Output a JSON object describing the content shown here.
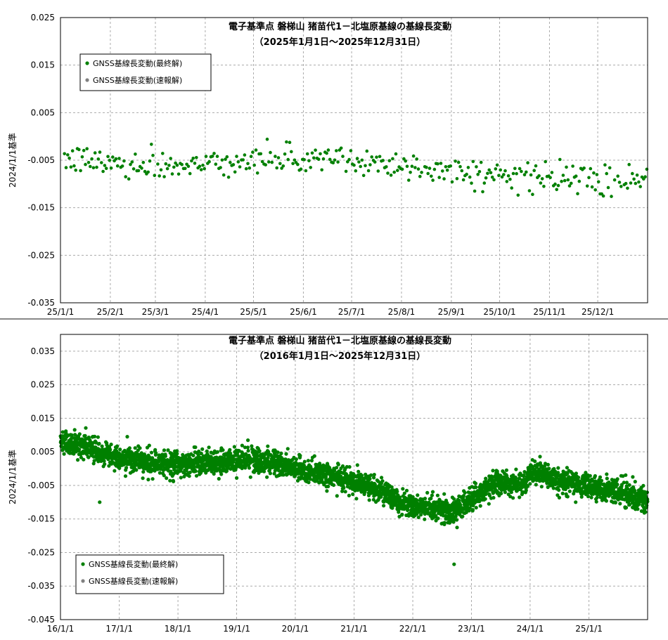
{
  "chart_data": [
    {
      "type": "scatter",
      "title": "電子基準点 磐梯山 猪苗代1－北塩原基線の基線長変動",
      "subtitle": "（2025年1月1日～2025年12月31日）",
      "ylabel": "2024/1/1基準",
      "ylim": [
        -0.035,
        0.025
      ],
      "y_ticks": [
        "0.025",
        "0.015",
        "0.005",
        "-0.005",
        "-0.015",
        "-0.025",
        "-0.035"
      ],
      "x_tick_labels": [
        "25/1/1",
        "25/2/1",
        "25/3/1",
        "25/4/1",
        "25/5/1",
        "25/6/1",
        "25/7/1",
        "25/8/1",
        "25/9/1",
        "25/10/1",
        "25/11/1",
        "25/12/1"
      ],
      "legend_position": "top-left",
      "series": [
        {
          "name": "GNSS基線長変動(最終解)",
          "color": "#008000"
        },
        {
          "name": "GNSS基線長変動(速報解)",
          "color": "#808080"
        }
      ],
      "trend_description": "daily points around -0.005 in January declining to about -0.009 by December",
      "x_start": "2025-01-01",
      "x_end": "2025-12-31",
      "control_points": [
        {
          "x": "2025-01-01",
          "y": -0.0048
        },
        {
          "x": "2025-03-01",
          "y": -0.0062
        },
        {
          "x": "2025-05-01",
          "y": -0.005
        },
        {
          "x": "2025-06-15",
          "y": -0.0047
        },
        {
          "x": "2025-08-01",
          "y": -0.006
        },
        {
          "x": "2025-09-15",
          "y": -0.0078
        },
        {
          "x": "2025-11-01",
          "y": -0.009
        },
        {
          "x": "2025-12-31",
          "y": -0.0095
        }
      ],
      "noise": 0.0015
    },
    {
      "type": "scatter",
      "title": "電子基準点 磐梯山 猪苗代1－北塩原基線の基線長変動",
      "subtitle": "（2016年1月1日～2025年12月31日）",
      "ylabel": "2024/1/1基準",
      "ylim": [
        -0.045,
        0.04
      ],
      "y_ticks": [
        "0.035",
        "0.025",
        "0.015",
        "0.005",
        "-0.005",
        "-0.015",
        "-0.025",
        "-0.035",
        "-0.045"
      ],
      "x_tick_labels": [
        "16/1/1",
        "17/1/1",
        "18/1/1",
        "19/1/1",
        "20/1/1",
        "21/1/1",
        "22/1/1",
        "23/1/1",
        "24/1/1",
        "25/1/1"
      ],
      "legend_position": "bottom-left",
      "series": [
        {
          "name": "GNSS基線長変動(最終解)",
          "color": "#008000"
        },
        {
          "name": "GNSS基線長変動(速報解)",
          "color": "#808080"
        }
      ],
      "x_start": "2016-01-01",
      "x_end": "2025-12-31",
      "control_points": [
        {
          "x": "2016-01-01",
          "y": 0.008
        },
        {
          "x": "2016-07-01",
          "y": 0.006
        },
        {
          "x": "2017-01-01",
          "y": 0.003
        },
        {
          "x": "2018-01-01",
          "y": 0.001
        },
        {
          "x": "2018-09-01",
          "y": 0.002
        },
        {
          "x": "2019-06-01",
          "y": 0.003
        },
        {
          "x": "2020-01-01",
          "y": 0.0
        },
        {
          "x": "2020-09-01",
          "y": -0.002
        },
        {
          "x": "2021-06-01",
          "y": -0.006
        },
        {
          "x": "2021-12-01",
          "y": -0.011
        },
        {
          "x": "2022-09-01",
          "y": -0.013
        },
        {
          "x": "2023-01-01",
          "y": -0.009
        },
        {
          "x": "2023-06-01",
          "y": -0.004
        },
        {
          "x": "2023-12-01",
          "y": -0.005
        },
        {
          "x": "2024-01-01",
          "y": -0.001
        },
        {
          "x": "2024-07-01",
          "y": -0.0035
        },
        {
          "x": "2025-01-01",
          "y": -0.005
        },
        {
          "x": "2025-12-31",
          "y": -0.009
        }
      ],
      "noise": 0.0018,
      "outliers": [
        {
          "x": "2016-09-01",
          "y": -0.01
        },
        {
          "x": "2022-09-15",
          "y": -0.0285
        }
      ]
    }
  ]
}
